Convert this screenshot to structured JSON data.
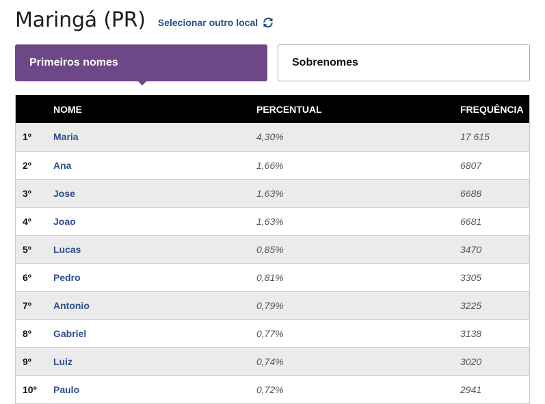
{
  "header": {
    "title": "Maringá (PR)",
    "change_location_label": "Selecionar outro local",
    "change_location_icon": "refresh-icon",
    "accent_color": "#1f4c86"
  },
  "tabs": [
    {
      "label": "Primeiros nomes",
      "active": true
    },
    {
      "label": "Sobrenomes",
      "active": false
    }
  ],
  "colors": {
    "active_tab": "#6e4789",
    "table_header": "#000000",
    "row_stripe": "#ebebeb",
    "name_link": "#2c4e8c"
  },
  "table": {
    "columns": {
      "rank": "",
      "name": "NOME",
      "percent": "PERCENTUAL",
      "frequency": "FREQUÊNCIA"
    },
    "rows": [
      {
        "rank": "1º",
        "name": "Maria",
        "percent": "4,30%",
        "frequency": "17 615"
      },
      {
        "rank": "2º",
        "name": "Ana",
        "percent": "1,66%",
        "frequency": "6807"
      },
      {
        "rank": "3º",
        "name": "Jose",
        "percent": "1,63%",
        "frequency": "6688"
      },
      {
        "rank": "4º",
        "name": "Joao",
        "percent": "1,63%",
        "frequency": "6681"
      },
      {
        "rank": "5º",
        "name": "Lucas",
        "percent": "0,85%",
        "frequency": "3470"
      },
      {
        "rank": "6º",
        "name": "Pedro",
        "percent": "0,81%",
        "frequency": "3305"
      },
      {
        "rank": "7º",
        "name": "Antonio",
        "percent": "0,79%",
        "frequency": "3225"
      },
      {
        "rank": "8º",
        "name": "Gabriel",
        "percent": "0,77%",
        "frequency": "3138"
      },
      {
        "rank": "9º",
        "name": "Luiz",
        "percent": "0,74%",
        "frequency": "3020"
      },
      {
        "rank": "10º",
        "name": "Paulo",
        "percent": "0,72%",
        "frequency": "2941"
      }
    ]
  }
}
